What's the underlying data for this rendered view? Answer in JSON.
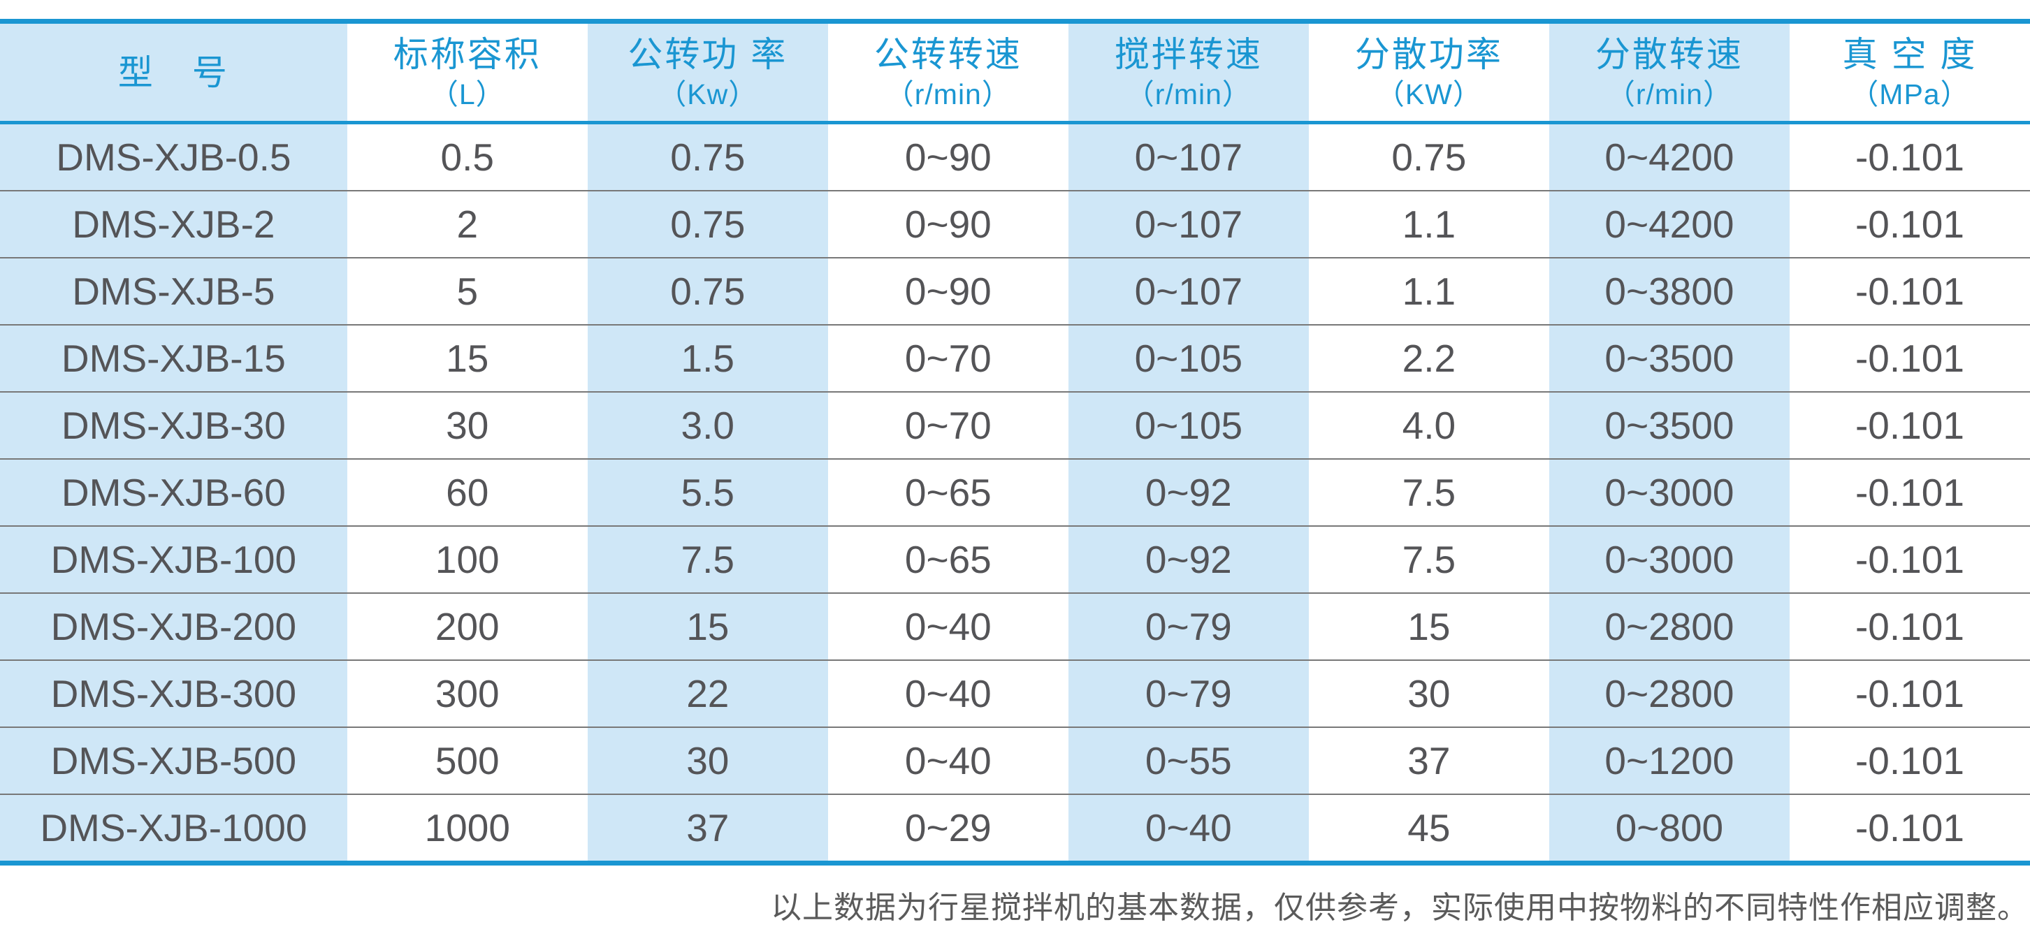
{
  "colors": {
    "accent_blue": "#1a96d2",
    "band_light_blue": "#cfe7f7",
    "cell_text": "#545457",
    "row_separator": "#787878",
    "footnote_text": "#5a5a5a"
  },
  "table": {
    "columns": [
      {
        "label": "型　号",
        "unit": ""
      },
      {
        "label": "标称容积",
        "unit": "（L）"
      },
      {
        "label": "公转功 率",
        "unit": "（Kw）"
      },
      {
        "label": "公转转速",
        "unit": "（r/min）"
      },
      {
        "label": "搅拌转速",
        "unit": "（r/min）"
      },
      {
        "label": "分散功率",
        "unit": "（KW）"
      },
      {
        "label": "分散转速",
        "unit": "（r/min）"
      },
      {
        "label": "真 空 度",
        "unit": "（MPa）"
      }
    ],
    "rows": [
      [
        "DMS-XJB-0.5",
        "0.5",
        "0.75",
        "0~90",
        "0~107",
        "0.75",
        "0~4200",
        "-0.101"
      ],
      [
        "DMS-XJB-2",
        "2",
        "0.75",
        "0~90",
        "0~107",
        "1.1",
        "0~4200",
        "-0.101"
      ],
      [
        "DMS-XJB-5",
        "5",
        "0.75",
        "0~90",
        "0~107",
        "1.1",
        "0~3800",
        "-0.101"
      ],
      [
        "DMS-XJB-15",
        "15",
        "1.5",
        "0~70",
        "0~105",
        "2.2",
        "0~3500",
        "-0.101"
      ],
      [
        "DMS-XJB-30",
        "30",
        "3.0",
        "0~70",
        "0~105",
        "4.0",
        "0~3500",
        "-0.101"
      ],
      [
        "DMS-XJB-60",
        "60",
        "5.5",
        "0~65",
        "0~92",
        "7.5",
        "0~3000",
        "-0.101"
      ],
      [
        "DMS-XJB-100",
        "100",
        "7.5",
        "0~65",
        "0~92",
        "7.5",
        "0~3000",
        "-0.101"
      ],
      [
        "DMS-XJB-200",
        "200",
        "15",
        "0~40",
        "0~79",
        "15",
        "0~2800",
        "-0.101"
      ],
      [
        "DMS-XJB-300",
        "300",
        "22",
        "0~40",
        "0~79",
        "30",
        "0~2800",
        "-0.101"
      ],
      [
        "DMS-XJB-500",
        "500",
        "30",
        "0~40",
        "0~55",
        "37",
        "0~1200",
        "-0.101"
      ],
      [
        "DMS-XJB-1000",
        "1000",
        "37",
        "0~29",
        "0~40",
        "45",
        "0~800",
        "-0.101"
      ]
    ],
    "footnote": "以上数据为行星搅拌机的基本数据，仅供参考，实际使用中按物料的不同特性作相应调整。"
  }
}
